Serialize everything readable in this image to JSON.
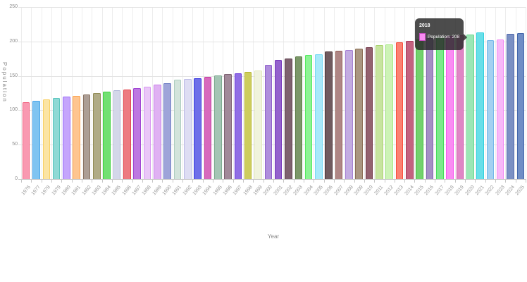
{
  "chart_data": {
    "type": "bar",
    "title": "",
    "xlabel": "Year",
    "ylabel": "Population",
    "ylim": [
      0,
      250
    ],
    "y_ticks": [
      0,
      50,
      100,
      150,
      200,
      250
    ],
    "grid": true,
    "legend": false,
    "categories": [
      "1976",
      "1977",
      "1978",
      "1979",
      "1980",
      "1981",
      "1982",
      "1983",
      "1984",
      "1985",
      "1986",
      "1987",
      "1988",
      "1989",
      "1990",
      "1991",
      "1992",
      "1993",
      "1994",
      "1995",
      "1996",
      "1997",
      "1998",
      "1999",
      "2000",
      "2001",
      "2002",
      "2003",
      "2004",
      "2005",
      "2006",
      "2007",
      "2008",
      "2009",
      "2010",
      "2011",
      "2012",
      "2013",
      "2014",
      "2015",
      "2016",
      "2017",
      "2018",
      "2019",
      "2020",
      "2021",
      "2022",
      "2023",
      "2024",
      "2025"
    ],
    "series": [
      {
        "name": "Population",
        "values": [
          112,
          114,
          116,
          118,
          120,
          121,
          123,
          125,
          127,
          129,
          130,
          132,
          134,
          137,
          139,
          144,
          145,
          147,
          149,
          151,
          153,
          154,
          156,
          158,
          166,
          173,
          175,
          178,
          180,
          181,
          185,
          186,
          188,
          190,
          192,
          195,
          196,
          199,
          201,
          203,
          205,
          206,
          208,
          209,
          210,
          213,
          202,
          203,
          211,
          212
        ]
      }
    ],
    "bar_fill": [
      "#F999B1",
      "#7FC4F1",
      "#FBE4A4",
      "#8FD9D5",
      "#C5A5FC",
      "#FEC590",
      "#AC9E95",
      "#B0AB86",
      "#72E072",
      "#D4D7E9",
      "#ED7B81",
      "#BD78E1",
      "#EAC7F8",
      "#E0B1F3",
      "#9EA4D9",
      "#D3E4DB",
      "#DEDDF3",
      "#6E6EE9",
      "#D769BD",
      "#A4C5B4",
      "#A18999",
      "#906EE5",
      "#CDCD5D",
      "#F0F3DD",
      "#AF8EDC",
      "#9462CD",
      "#7E626F",
      "#7B9769",
      "#8DF393",
      "#A9E9F9",
      "#705B5F",
      "#AF8685",
      "#C3ACE1",
      "#A99681",
      "#93616F",
      "#C7E49F",
      "#CDF3B6",
      "#FB8173",
      "#C3627F",
      "#73D16D",
      "#A58FC5",
      "#7CE98B",
      "#FA8CF3",
      "#DF86C5",
      "#9BE7B5",
      "#68DFE9",
      "#A4D1F1",
      "#F8B9F8",
      "#7B90C3",
      "#6F8DC5"
    ],
    "bar_border": [
      "#F1607E",
      "#4AA5E9",
      "#F8D063",
      "#59C5BE",
      "#9B6FF9",
      "#FDA24B",
      "#8B7464",
      "#918B55",
      "#3ED13E",
      "#AFB5D7",
      "#E3474F",
      "#A046D3",
      "#D795F2",
      "#C97FE9",
      "#7381C6",
      "#ADCDBF",
      "#BCBAE7",
      "#3A3ADF",
      "#C538A0",
      "#7EAC91",
      "#7D6070",
      "#6B39DB",
      "#B6B62D",
      "#E2E8BD",
      "#8F61CB",
      "#7537BB",
      "#5D3E4C",
      "#5A7B45",
      "#52EA5E",
      "#73D9F5",
      "#4D3538",
      "#945F57",
      "#A580D3",
      "#8C6F55",
      "#733848",
      "#A9D36E",
      "#A5EA83",
      "#FA4F3B",
      "#AA395C",
      "#3FBE37",
      "#8062AE",
      "#45DE5C",
      "#F857EE",
      "#D053A8",
      "#68D98E",
      "#30CFDD",
      "#74B7EA",
      "#F28BF2",
      "#4F67AB",
      "#4366AC"
    ]
  },
  "tooltip": {
    "title": "2018",
    "label": "Population: 208",
    "swatch_fill": "#FA8CF3",
    "swatch_border": "#C94FC2",
    "background": "#2A2A2A"
  }
}
